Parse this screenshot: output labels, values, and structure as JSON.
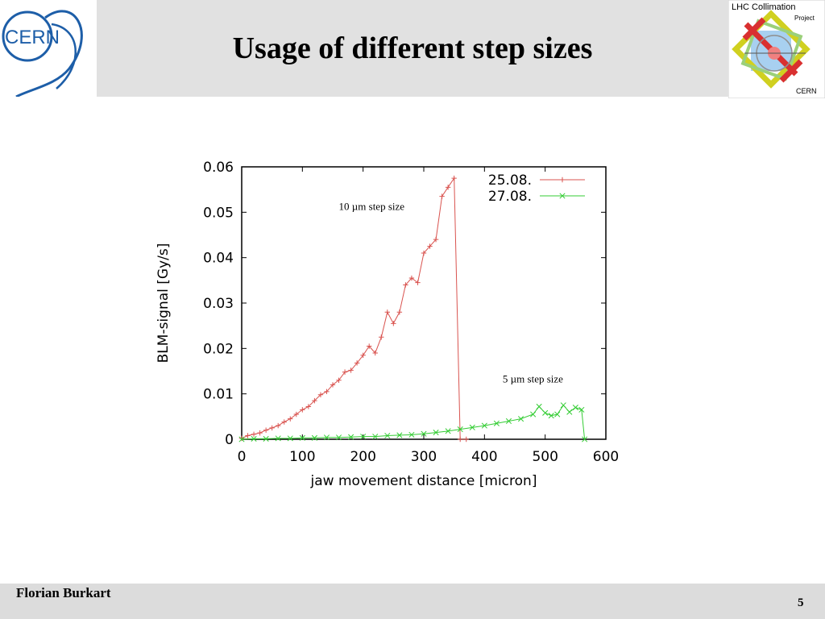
{
  "slide": {
    "title": "Usage of different step sizes",
    "author": "Florian Burkart",
    "page_number": "5"
  },
  "logos": {
    "left": {
      "text": "CERN",
      "color": "#1d5ea8"
    },
    "right": {
      "title": "LHC Collimation",
      "subtitle": "Project",
      "org": "CERN"
    }
  },
  "chart_data": {
    "type": "line",
    "xlabel": "jaw movement distance [micron]",
    "ylabel": "BLM-signal [Gy/s]",
    "xlim": [
      0,
      600
    ],
    "ylim": [
      0,
      0.06
    ],
    "xticks": [
      "0",
      "100",
      "200",
      "300",
      "400",
      "500",
      "600"
    ],
    "yticks": [
      "0",
      "0.01",
      "0.02",
      "0.03",
      "0.04",
      "0.05",
      "0.06"
    ],
    "grid": false,
    "legend_position": "top-right",
    "annotations": [
      {
        "text": "10 µm step size",
        "x": 160,
        "y": 0.0505
      },
      {
        "text": "5 µm step size",
        "x": 430,
        "y": 0.0125
      }
    ],
    "series": [
      {
        "name": "25.08.",
        "color": "#d9534f",
        "marker": "+",
        "x": [
          0,
          10,
          20,
          30,
          40,
          50,
          60,
          70,
          80,
          90,
          100,
          110,
          120,
          130,
          140,
          150,
          160,
          170,
          180,
          190,
          200,
          210,
          220,
          230,
          240,
          250,
          260,
          270,
          280,
          290,
          300,
          310,
          320,
          330,
          340,
          350,
          360,
          370
        ],
        "y": [
          0.0002,
          0.0008,
          0.0011,
          0.0014,
          0.002,
          0.0025,
          0.003,
          0.0038,
          0.0045,
          0.0055,
          0.0065,
          0.0072,
          0.0085,
          0.0098,
          0.0105,
          0.012,
          0.013,
          0.0148,
          0.0152,
          0.0168,
          0.0185,
          0.0205,
          0.019,
          0.0225,
          0.028,
          0.0255,
          0.028,
          0.034,
          0.0355,
          0.0345,
          0.041,
          0.0425,
          0.044,
          0.0535,
          0.0555,
          0.0575,
          0.0,
          0.0
        ]
      },
      {
        "name": "27.08.",
        "color": "#33cc33",
        "marker": "x",
        "x": [
          0,
          20,
          40,
          60,
          80,
          100,
          120,
          140,
          160,
          180,
          200,
          220,
          240,
          260,
          280,
          300,
          320,
          340,
          360,
          380,
          400,
          420,
          440,
          460,
          480,
          490,
          500,
          510,
          520,
          530,
          540,
          550,
          560,
          565
        ],
        "y": [
          0.0,
          0.0001,
          0.0001,
          0.0002,
          0.0002,
          0.0003,
          0.0003,
          0.0004,
          0.0004,
          0.0005,
          0.0006,
          0.0006,
          0.0008,
          0.0009,
          0.001,
          0.0012,
          0.0015,
          0.0018,
          0.0022,
          0.0026,
          0.003,
          0.0035,
          0.004,
          0.0045,
          0.0055,
          0.0072,
          0.0058,
          0.0052,
          0.0055,
          0.0075,
          0.006,
          0.007,
          0.0065,
          0.0
        ]
      }
    ]
  }
}
